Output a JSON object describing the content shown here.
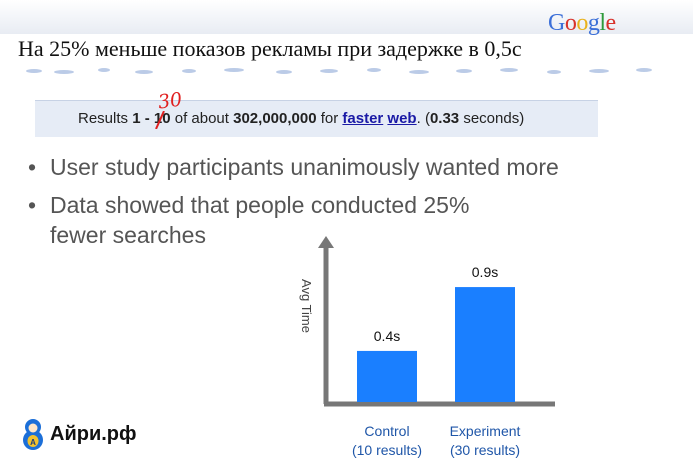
{
  "headline": "На 25% меньше показов рекламы при задержке в 0,5с",
  "google_logo": {
    "letters": [
      "G",
      "o",
      "o",
      "g",
      "l",
      "e"
    ],
    "colors": [
      "#3b6fd8",
      "#d8322b",
      "#e9b21d",
      "#3b6fd8",
      "#2e9a3b",
      "#d8322b"
    ]
  },
  "results_bar": {
    "prefix": "Results ",
    "start": "1",
    "dash": " - ",
    "end_original": "10",
    "handwritten_new": "30",
    "about": " of about ",
    "count": "302,000,000",
    "for_text": " for ",
    "query_word1": "faster",
    "query_word2": "web",
    "time_open": ". (",
    "time_value": "0.33",
    "time_close": " seconds)"
  },
  "bullets": [
    "User study participants unanimously wanted more",
    "Data showed that people conducted 25% fewer searches"
  ],
  "colors": {
    "bar": "#1a7fff",
    "axis": "#777777",
    "label_blue": "#1f56a8",
    "handwritten": "#e02020"
  },
  "chart_data": {
    "type": "bar",
    "categories": [
      "Control\n(10 results)",
      "Experiment\n(30 results)"
    ],
    "category_lines": [
      [
        "Control",
        "(10 results)"
      ],
      [
        "Experiment",
        "(30 results)"
      ]
    ],
    "values": [
      0.4,
      0.9
    ],
    "data_labels": [
      "0.4s",
      "0.9s"
    ],
    "ylabel": "Avg Time",
    "ylim": [
      0,
      1.3
    ],
    "grid": false
  },
  "brand": {
    "text": "Айри.рф",
    "icon": "matryoshka-icon"
  }
}
